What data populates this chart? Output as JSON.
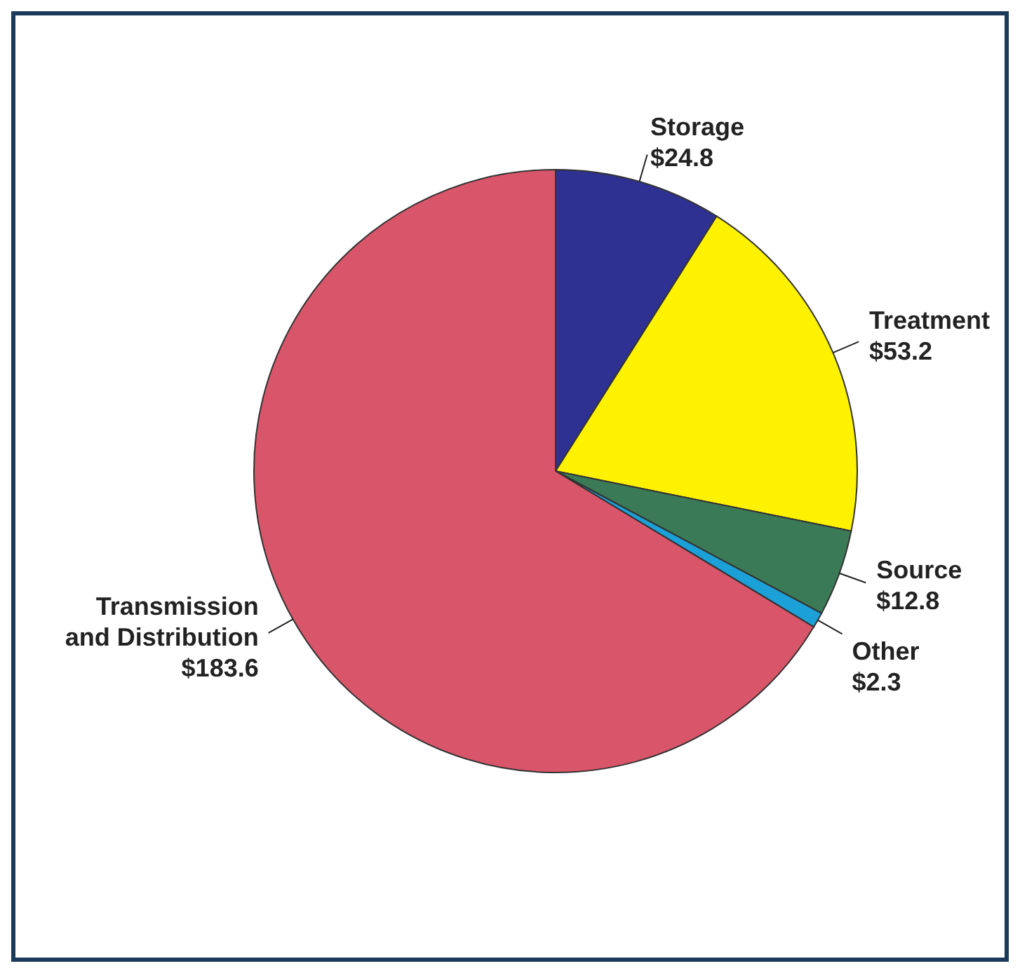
{
  "chart_data": {
    "type": "pie",
    "categories": [
      "Storage",
      "Treatment",
      "Source",
      "Other",
      "Transmission and Distribution"
    ],
    "values": [
      24.8,
      53.2,
      12.8,
      2.3,
      183.6
    ],
    "value_labels": [
      "$24.8",
      "$53.2",
      "$12.8",
      "$2.3",
      "$183.6"
    ],
    "colors": [
      "#2e3192",
      "#fff200",
      "#3b7a57",
      "#1ba1d8",
      "#d9566a"
    ],
    "legend": false
  }
}
